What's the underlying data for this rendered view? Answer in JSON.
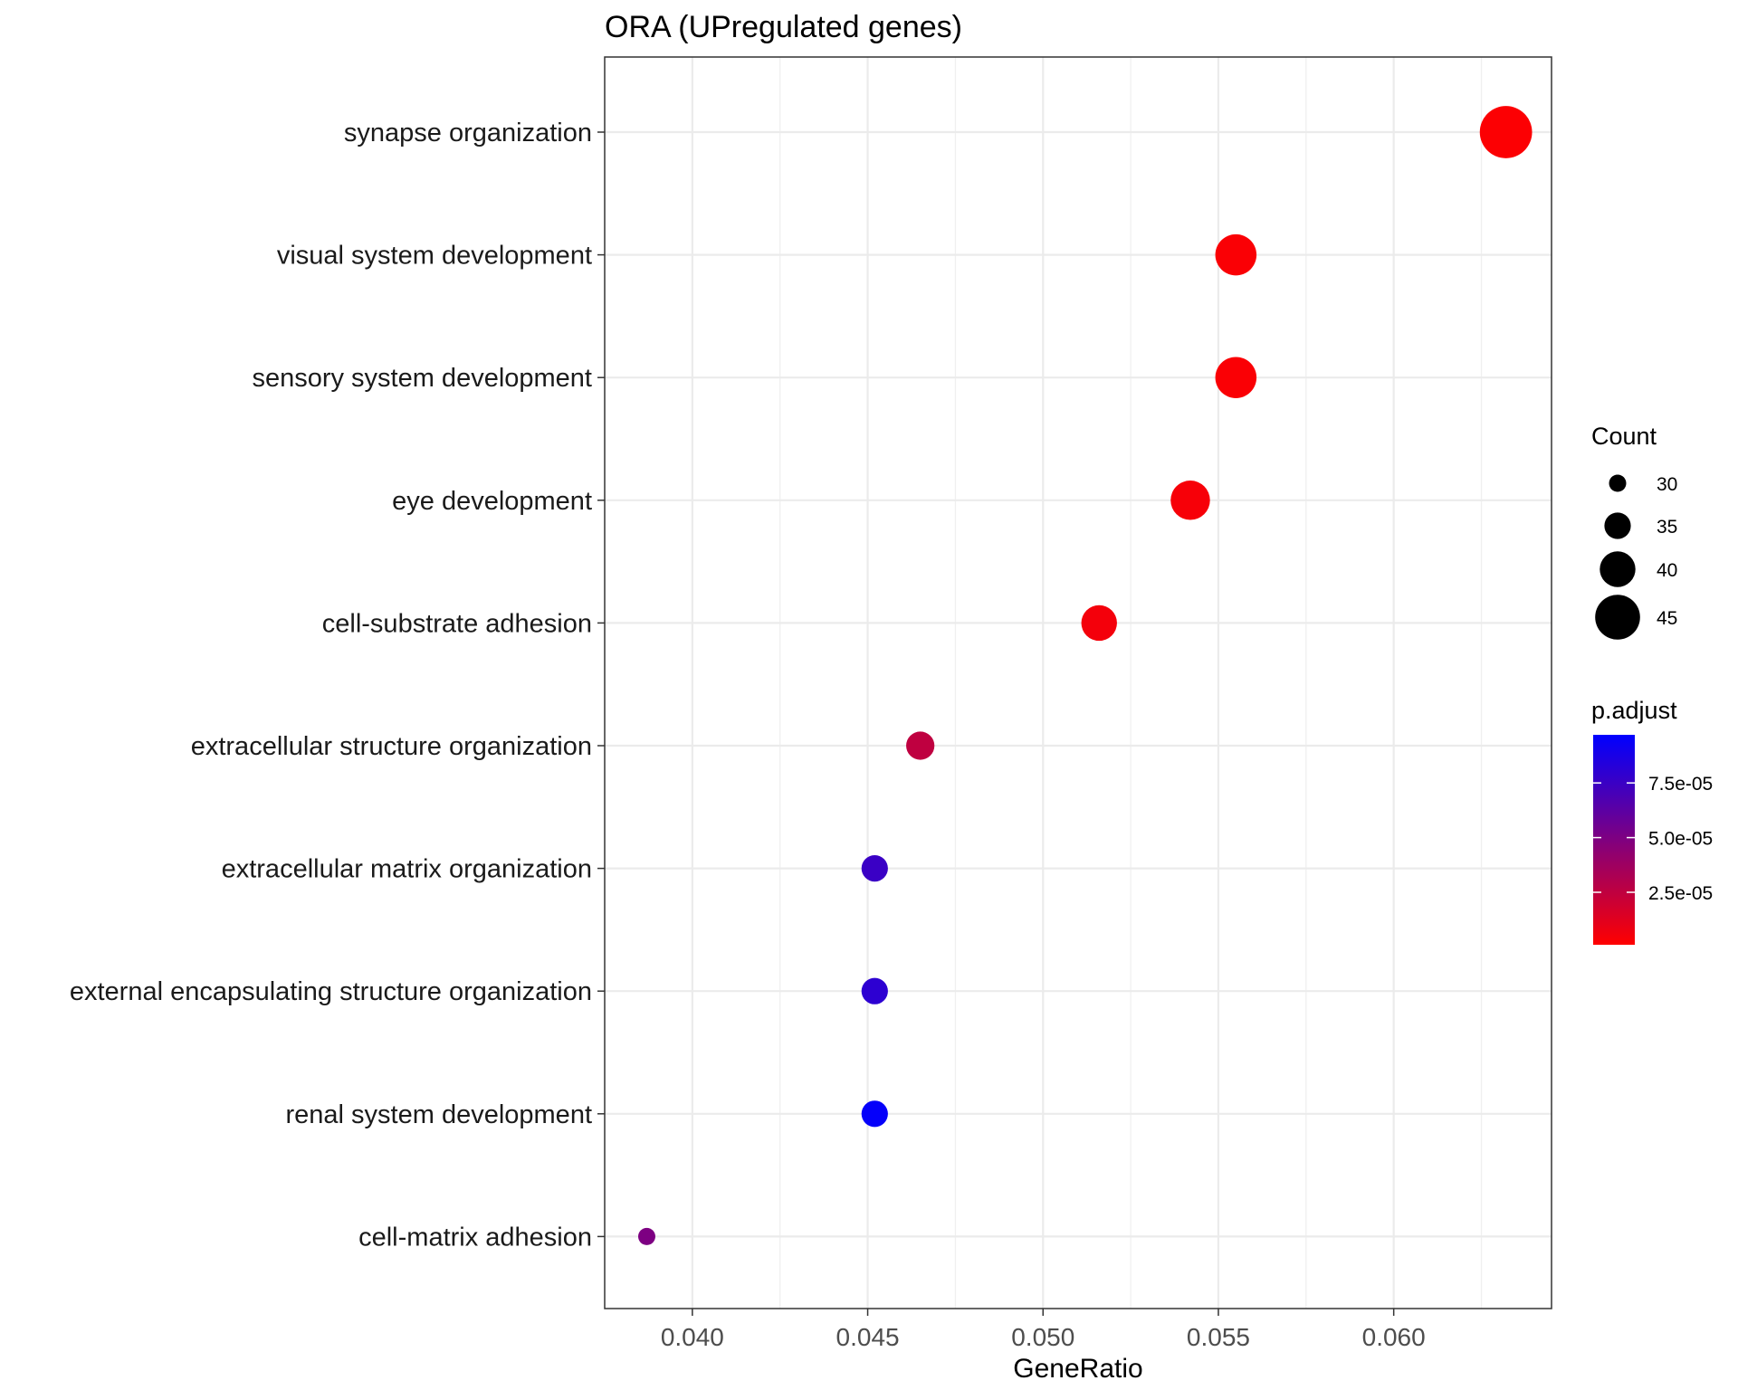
{
  "chart_data": {
    "type": "scatter",
    "title": "ORA (UPregulated genes)",
    "xlabel": "GeneRatio",
    "ylabel": "",
    "xlim": [
      0.0375,
      0.0645
    ],
    "xticks": [
      "0.040",
      "0.045",
      "0.050",
      "0.055",
      "0.060"
    ],
    "xtick_values": [
      0.04,
      0.045,
      0.05,
      0.055,
      0.06
    ],
    "grid": true,
    "categories": [
      "synapse organization",
      "visual system development",
      "sensory system development",
      "eye development",
      "cell-substrate adhesion",
      "extracellular structure organization",
      "extracellular matrix organization",
      "external encapsulating structure organization",
      "renal system development",
      "cell-matrix adhesion"
    ],
    "points": [
      {
        "term": "synapse organization",
        "gene_ratio": 0.0632,
        "count": 49,
        "p_adjust": 2e-06
      },
      {
        "term": "visual system development",
        "gene_ratio": 0.0555,
        "count": 43,
        "p_adjust": 3e-06
      },
      {
        "term": "sensory system development",
        "gene_ratio": 0.0555,
        "count": 43,
        "p_adjust": 3e-06
      },
      {
        "term": "eye development",
        "gene_ratio": 0.0542,
        "count": 42,
        "p_adjust": 4e-06
      },
      {
        "term": "cell-substrate adhesion",
        "gene_ratio": 0.0516,
        "count": 40,
        "p_adjust": 5e-06
      },
      {
        "term": "extracellular structure organization",
        "gene_ratio": 0.0465,
        "count": 36,
        "p_adjust": 2.5e-05
      },
      {
        "term": "extracellular matrix organization",
        "gene_ratio": 0.0452,
        "count": 35,
        "p_adjust": 7.5e-05
      },
      {
        "term": "external encapsulating structure organization",
        "gene_ratio": 0.0452,
        "count": 35,
        "p_adjust": 8e-05
      },
      {
        "term": "renal system development",
        "gene_ratio": 0.0452,
        "count": 35,
        "p_adjust": 9.5e-05
      },
      {
        "term": "cell-matrix adhesion",
        "gene_ratio": 0.0387,
        "count": 30,
        "p_adjust": 5e-05
      }
    ],
    "size_legend": {
      "title": "Count",
      "values": [
        30,
        35,
        40,
        45
      ],
      "labels": [
        "30",
        "35",
        "40",
        "45"
      ]
    },
    "color_legend": {
      "title": "p.adjust",
      "range": [
        1e-06,
        9.7e-05
      ],
      "ticks": [
        2.5e-05,
        5e-05,
        7.5e-05
      ],
      "tick_labels": [
        "2.5e-05",
        "5.0e-05",
        "7.5e-05"
      ],
      "low_color": "#ff0000",
      "high_color": "#0000ff"
    }
  }
}
